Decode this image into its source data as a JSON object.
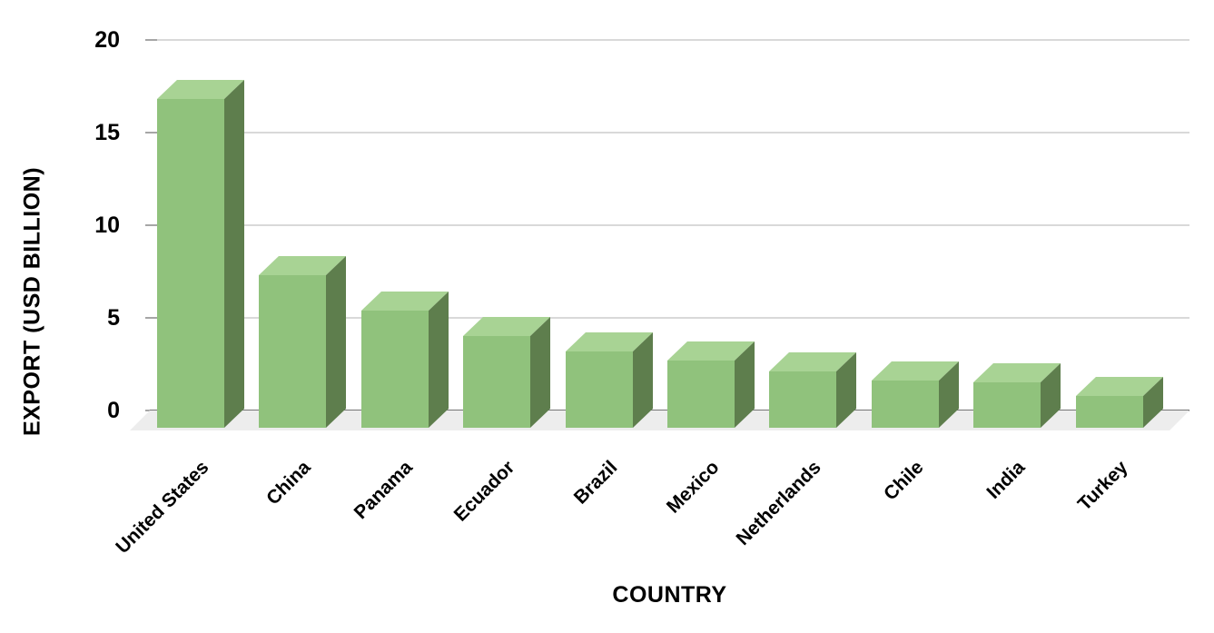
{
  "colors": {
    "bar_front": "#90c27c",
    "bar_top": "#a8d394",
    "bar_side": "#5e7e4d",
    "floor": "#ededed",
    "gridline": "#d9d9d9",
    "tick_mark": "#a6a6a6",
    "zero_axis_line": "#757575",
    "text": "#000000",
    "background": "#ffffff"
  },
  "chart_data": {
    "type": "bar",
    "style": "3d-column",
    "title": "",
    "categories": [
      "United States",
      "China",
      "Panama",
      "Ecuador",
      "Brazil",
      "Mexico",
      "Netherlands",
      "Chile",
      "India",
      "Turkey"
    ],
    "values": [
      16.8,
      7.3,
      5.4,
      4.0,
      3.2,
      2.7,
      2.1,
      1.6,
      1.5,
      0.8
    ],
    "xlabel": "COUNTRY",
    "ylabel": "EXPORT (USD BILLION)",
    "ylim": [
      0,
      20
    ],
    "yticks": [
      0,
      5,
      10,
      15,
      20
    ],
    "grid": true,
    "legend": false,
    "series_name": "Export"
  }
}
